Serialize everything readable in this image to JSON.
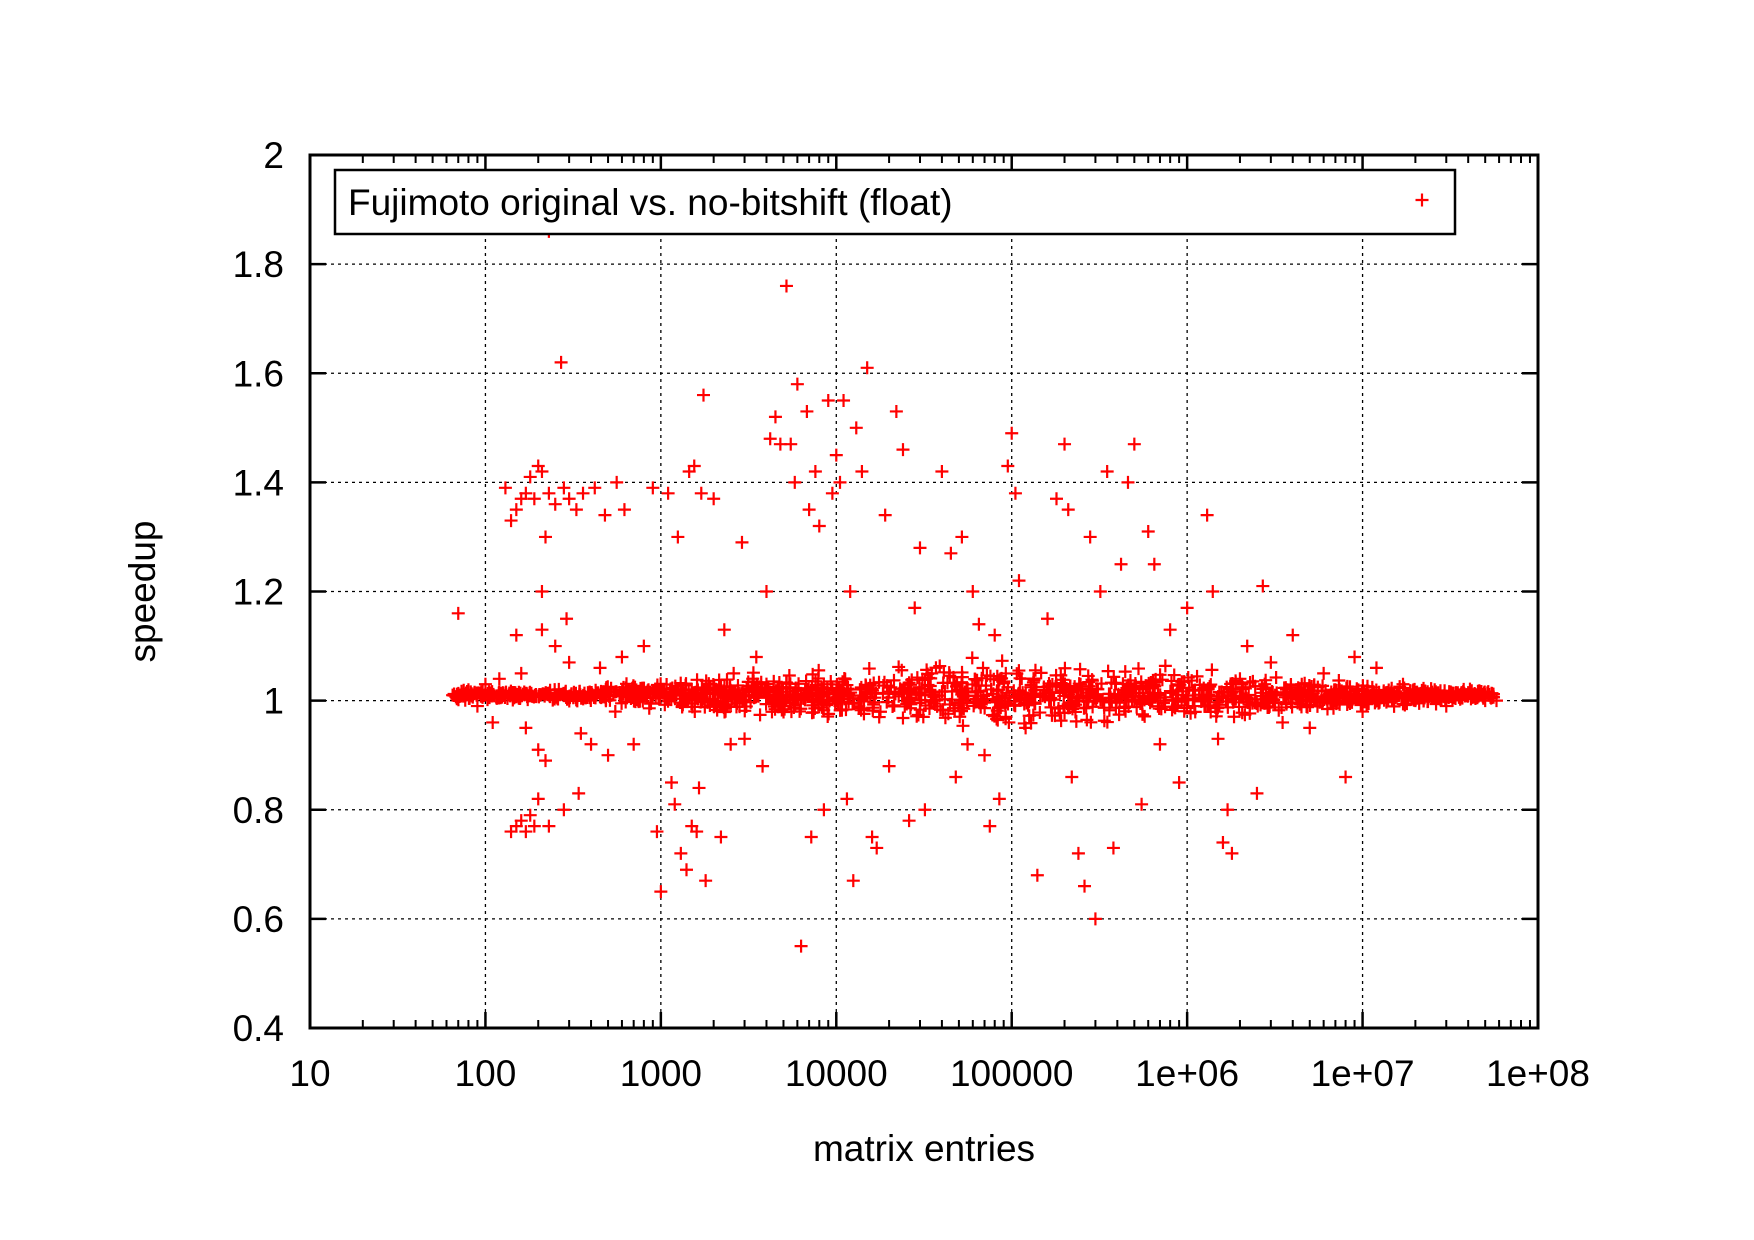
{
  "chart_data": {
    "type": "scatter",
    "xlabel": "matrix entries",
    "ylabel": "speedup",
    "x_scale": "log",
    "xlim": [
      10,
      100000000
    ],
    "ylim": [
      0.4,
      2
    ],
    "x_ticks": [
      10,
      100,
      1000,
      10000,
      100000,
      1000000,
      10000000,
      100000000
    ],
    "x_tick_labels": [
      "10",
      "100",
      "1000",
      "10000",
      "100000",
      "1e+06",
      "1e+07",
      "1e+08"
    ],
    "y_ticks": [
      0.4,
      0.6,
      0.8,
      1,
      1.2,
      1.4,
      1.6,
      1.8,
      2
    ],
    "y_tick_labels": [
      "0.4",
      "0.6",
      "0.8",
      "1",
      "1.2",
      "1.4",
      "1.6",
      "1.8",
      "2"
    ],
    "grid": true,
    "legend_position": "top",
    "series": [
      {
        "name": "Fujimoto original vs. no-bitshift (float)",
        "color": "#ff0000",
        "marker": "plus",
        "points": [
          [
            70,
            1.16
          ],
          [
            65,
            1.01
          ],
          [
            80,
            1.02
          ],
          [
            90,
            0.99
          ],
          [
            100,
            1.03
          ],
          [
            110,
            0.96
          ],
          [
            120,
            1.04
          ],
          [
            130,
            1.39
          ],
          [
            140,
            1.33
          ],
          [
            150,
            1.35
          ],
          [
            160,
            1.37
          ],
          [
            170,
            1.38
          ],
          [
            180,
            1.41
          ],
          [
            190,
            1.37
          ],
          [
            200,
            1.43
          ],
          [
            210,
            1.42
          ],
          [
            220,
            1.3
          ],
          [
            230,
            1.38
          ],
          [
            250,
            1.36
          ],
          [
            280,
            1.39
          ],
          [
            300,
            1.37
          ],
          [
            330,
            1.35
          ],
          [
            360,
            1.38
          ],
          [
            420,
            1.39
          ],
          [
            480,
            1.34
          ],
          [
            560,
            1.4
          ],
          [
            620,
            1.35
          ],
          [
            140,
            0.76
          ],
          [
            150,
            0.77
          ],
          [
            160,
            0.78
          ],
          [
            170,
            0.76
          ],
          [
            180,
            0.79
          ],
          [
            190,
            0.77
          ],
          [
            200,
            0.82
          ],
          [
            220,
            0.89
          ],
          [
            230,
            0.77
          ],
          [
            280,
            0.8
          ],
          [
            340,
            0.83
          ],
          [
            200,
            0.91
          ],
          [
            210,
            1.2
          ],
          [
            210,
            1.13
          ],
          [
            240,
            1.95
          ],
          [
            230,
            1.86
          ],
          [
            270,
            1.62
          ],
          [
            290,
            1.15
          ],
          [
            250,
            1.1
          ],
          [
            150,
            1.12
          ],
          [
            160,
            1.05
          ],
          [
            170,
            0.95
          ],
          [
            300,
            1.07
          ],
          [
            350,
            0.94
          ],
          [
            400,
            0.92
          ],
          [
            450,
            1.06
          ],
          [
            500,
            0.9
          ],
          [
            550,
            0.98
          ],
          [
            600,
            1.08
          ],
          [
            700,
            0.92
          ],
          [
            800,
            1.1
          ],
          [
            850,
            1.02
          ],
          [
            900,
            1.39
          ],
          [
            950,
            0.76
          ],
          [
            1000,
            0.65
          ],
          [
            1100,
            1.38
          ],
          [
            1150,
            0.85
          ],
          [
            1200,
            0.81
          ],
          [
            1250,
            1.3
          ],
          [
            1300,
            0.72
          ],
          [
            1400,
            0.69
          ],
          [
            1450,
            1.42
          ],
          [
            1500,
            0.77
          ],
          [
            1550,
            1.43
          ],
          [
            1600,
            0.76
          ],
          [
            1650,
            0.84
          ],
          [
            1700,
            1.38
          ],
          [
            1750,
            1.56
          ],
          [
            1800,
            0.67
          ],
          [
            2000,
            1.37
          ],
          [
            2200,
            0.75
          ],
          [
            2300,
            1.13
          ],
          [
            2500,
            0.92
          ],
          [
            2600,
            1.05
          ],
          [
            2900,
            1.29
          ],
          [
            3000,
            0.93
          ],
          [
            3500,
            1.08
          ],
          [
            3800,
            0.88
          ],
          [
            4000,
            1.2
          ],
          [
            4200,
            1.48
          ],
          [
            4500,
            1.52
          ],
          [
            4800,
            1.47
          ],
          [
            5200,
            1.76
          ],
          [
            5500,
            1.47
          ],
          [
            5800,
            1.4
          ],
          [
            6000,
            1.58
          ],
          [
            6300,
            0.55
          ],
          [
            6800,
            1.53
          ],
          [
            7000,
            1.35
          ],
          [
            7200,
            0.75
          ],
          [
            7600,
            1.42
          ],
          [
            8000,
            1.32
          ],
          [
            8500,
            0.8
          ],
          [
            9000,
            1.55
          ],
          [
            9500,
            1.38
          ],
          [
            10000,
            1.45
          ],
          [
            10500,
            1.4
          ],
          [
            11000,
            1.55
          ],
          [
            11500,
            0.82
          ],
          [
            12000,
            1.2
          ],
          [
            12500,
            0.67
          ],
          [
            13000,
            1.5
          ],
          [
            14000,
            1.42
          ],
          [
            15000,
            1.61
          ],
          [
            16000,
            0.75
          ],
          [
            17000,
            0.73
          ],
          [
            19000,
            1.34
          ],
          [
            20000,
            0.88
          ],
          [
            22000,
            1.53
          ],
          [
            24000,
            1.46
          ],
          [
            26000,
            0.78
          ],
          [
            28000,
            1.17
          ],
          [
            30000,
            1.28
          ],
          [
            32000,
            0.8
          ],
          [
            35000,
            1.05
          ],
          [
            40000,
            1.42
          ],
          [
            45000,
            1.27
          ],
          [
            48000,
            0.86
          ],
          [
            52000,
            1.3
          ],
          [
            56000,
            0.92
          ],
          [
            60000,
            1.2
          ],
          [
            65000,
            1.14
          ],
          [
            70000,
            0.9
          ],
          [
            75000,
            0.77
          ],
          [
            80000,
            1.12
          ],
          [
            85000,
            0.82
          ],
          [
            95000,
            1.43
          ],
          [
            100000,
            1.49
          ],
          [
            105000,
            1.38
          ],
          [
            110000,
            1.22
          ],
          [
            120000,
            0.95
          ],
          [
            140000,
            0.68
          ],
          [
            160000,
            1.15
          ],
          [
            180000,
            1.37
          ],
          [
            200000,
            1.47
          ],
          [
            210000,
            1.35
          ],
          [
            220000,
            0.86
          ],
          [
            240000,
            0.72
          ],
          [
            260000,
            0.66
          ],
          [
            280000,
            1.3
          ],
          [
            300000,
            0.6
          ],
          [
            320000,
            1.2
          ],
          [
            350000,
            1.42
          ],
          [
            380000,
            0.73
          ],
          [
            420000,
            1.25
          ],
          [
            460000,
            1.4
          ],
          [
            500000,
            1.47
          ],
          [
            550000,
            0.81
          ],
          [
            600000,
            1.31
          ],
          [
            650000,
            1.25
          ],
          [
            700000,
            0.92
          ],
          [
            800000,
            1.13
          ],
          [
            900000,
            0.85
          ],
          [
            1000000,
            1.17
          ],
          [
            1100000,
            0.99
          ],
          [
            1300000,
            1.34
          ],
          [
            1400000,
            1.2
          ],
          [
            1500000,
            0.93
          ],
          [
            1600000,
            0.74
          ],
          [
            1700000,
            0.8
          ],
          [
            1800000,
            0.72
          ],
          [
            2000000,
            1.04
          ],
          [
            2200000,
            1.1
          ],
          [
            2500000,
            0.83
          ],
          [
            2700000,
            1.21
          ],
          [
            3000000,
            1.07
          ],
          [
            3500000,
            0.96
          ],
          [
            4000000,
            1.12
          ],
          [
            4500000,
            1.03
          ],
          [
            5000000,
            0.95
          ],
          [
            6000000,
            1.05
          ],
          [
            7000000,
            1.02
          ],
          [
            8000000,
            0.86
          ],
          [
            9000000,
            1.08
          ],
          [
            10000000,
            0.98
          ],
          [
            12000000,
            1.06
          ],
          [
            14000000,
            1.0
          ],
          [
            17000000,
            1.03
          ],
          [
            20000000,
            1.0
          ],
          [
            25000000,
            1.01
          ],
          [
            30000000,
            0.99
          ],
          [
            40000000,
            1.01
          ],
          [
            50000000,
            1.0
          ],
          [
            58000000,
            1.0
          ]
        ]
      }
    ]
  }
}
